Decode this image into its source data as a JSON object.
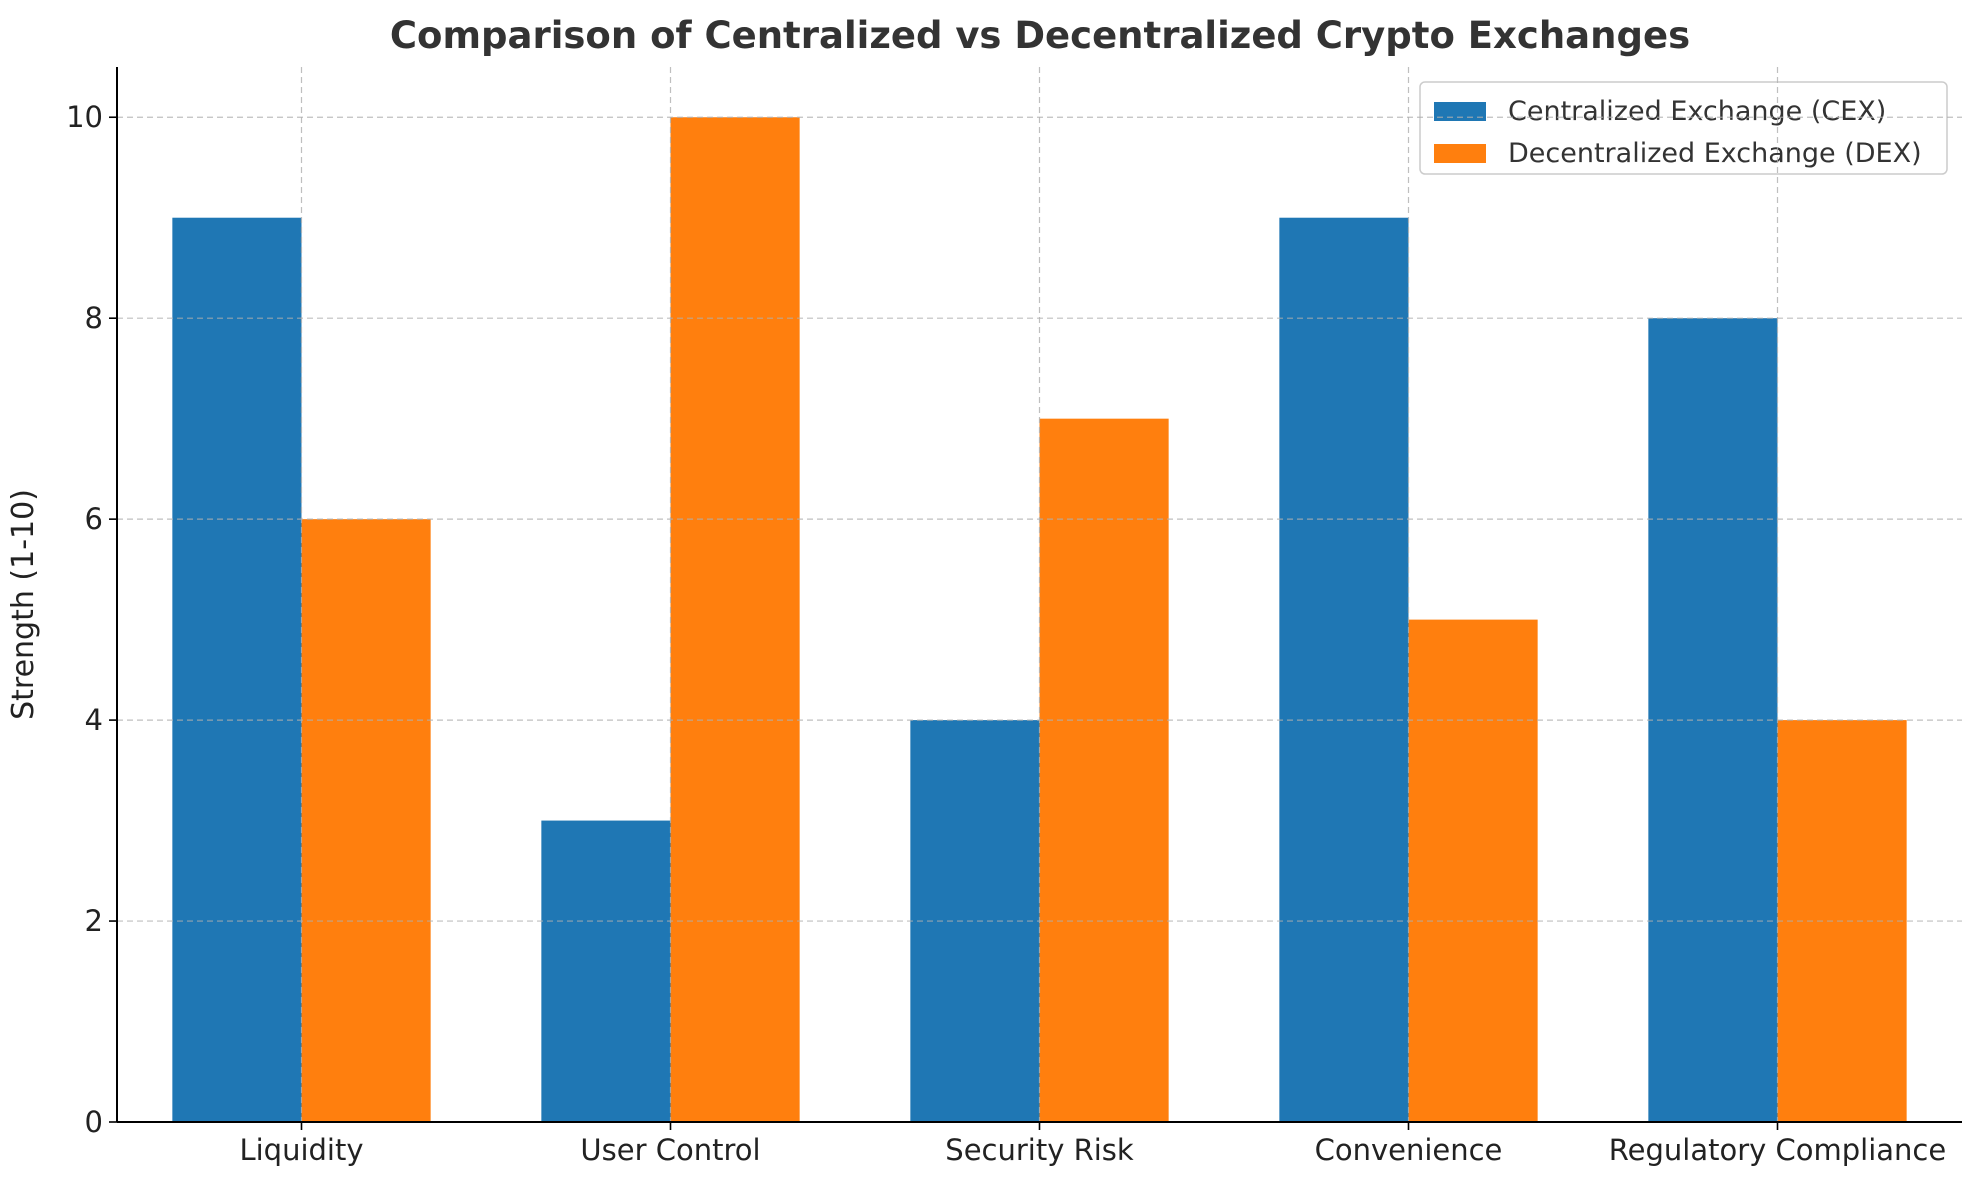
{
  "chart_data": {
    "type": "bar",
    "title": "Comparison of Centralized vs Decentralized Crypto Exchanges",
    "xlabel": "",
    "ylabel": "Strength (1-10)",
    "categories": [
      "Liquidity",
      "User Control",
      "Security Risk",
      "Convenience",
      "Regulatory Compliance"
    ],
    "series": [
      {
        "name": "Centralized Exchange (CEX)",
        "values": [
          9,
          3,
          4,
          9,
          8
        ],
        "color": "#1f77b4"
      },
      {
        "name": "Decentralized Exchange (DEX)",
        "values": [
          6,
          10,
          7,
          5,
          4
        ],
        "color": "#ff7f0e"
      }
    ],
    "ylim": [
      0,
      10.5
    ],
    "yticks": [
      0,
      2,
      4,
      6,
      8,
      10
    ],
    "grid": true,
    "legend_position": "top-right"
  }
}
